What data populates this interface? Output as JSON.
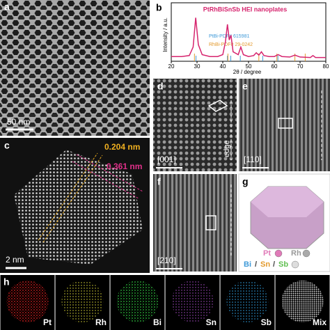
{
  "panel_a": {
    "label": "a",
    "scale": "50 nm"
  },
  "panel_b": {
    "type": "line",
    "label": "b",
    "title": "PtRhBiSnSb HEI nanoplates",
    "ylabel": "Intensity / a.u.",
    "xlabel": "2θ / degree",
    "xlim": [
      20,
      80
    ],
    "xticks": [
      20,
      30,
      40,
      50,
      60,
      70,
      80
    ],
    "ylim": [
      0,
      100
    ],
    "x": [
      20,
      24,
      27,
      28.5,
      29.5,
      30.5,
      32,
      35,
      38,
      40,
      41,
      41.8,
      42.5,
      43.2,
      44,
      46,
      47,
      48,
      50,
      52,
      53,
      54,
      55,
      56,
      58,
      60,
      61.5,
      63,
      66,
      68,
      70,
      74,
      75,
      76,
      80
    ],
    "series": [
      {
        "name": "PtRhBiSnSb HEI nanoplates",
        "color": "#d6246e",
        "values": [
          10,
          10,
          12,
          30,
          92,
          35,
          14,
          10,
          10,
          14,
          40,
          78,
          45,
          55,
          20,
          14,
          30,
          14,
          10,
          12,
          18,
          13,
          20,
          12,
          10,
          10,
          14,
          10,
          9,
          13,
          9,
          8,
          12,
          8,
          8
        ]
      }
    ],
    "references": [
      {
        "name": "PtBi-PDF# 615981",
        "color": "#3f9ad8",
        "positions": [
          29.6,
          41.8,
          43.1,
          46.8,
          55.5,
          61.4
        ]
      },
      {
        "name": "RhBi-PDF# 29-0242",
        "color": "#e39a2d",
        "positions": [
          29.0,
          42.0,
          54.0,
          61.0,
          68.0,
          72.0
        ]
      }
    ]
  },
  "panel_c": {
    "label": "c",
    "spacing_1": "0.204 nm",
    "spacing_2": "0.361 nm",
    "scale": "2 nm"
  },
  "panel_d": {
    "label": "d",
    "zone": "[001]",
    "edge": "edge"
  },
  "panel_e": {
    "label": "e",
    "zone": "[110]"
  },
  "panel_f": {
    "label": "f",
    "zone": "[210]"
  },
  "panel_g": {
    "label": "g",
    "legend": [
      "Pt",
      "Rh",
      "Bi",
      "/",
      "Sn",
      "/",
      "Sb"
    ]
  },
  "panel_h": {
    "label": "h",
    "maps": [
      "Pt",
      "Rh",
      "Bi",
      "Sn",
      "Sb",
      "Mix"
    ]
  }
}
